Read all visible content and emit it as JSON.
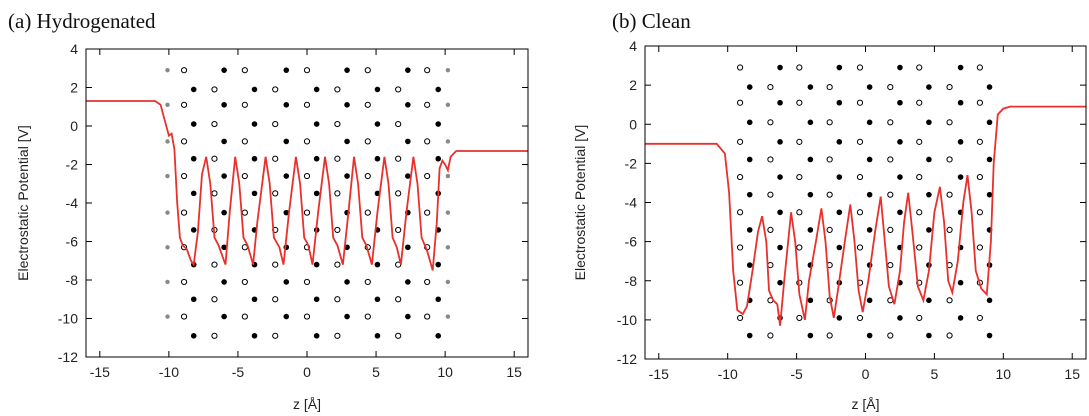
{
  "chart_data": [
    {
      "type": "line",
      "title": "(a) Hydrogenated",
      "xlabel": "z [Å]",
      "ylabel": "Electrostatic Potential [V]",
      "xlim": [
        -16,
        16
      ],
      "ylim": [
        -12,
        4
      ],
      "xticks": [
        -15,
        -10,
        -5,
        0,
        5,
        10,
        15
      ],
      "yticks": [
        -12,
        -10,
        -8,
        -6,
        -4,
        -2,
        0,
        2,
        4
      ],
      "color": "#e8302c",
      "x": [
        -16,
        -11,
        -10.6,
        -10.3,
        -10.0,
        -9.8,
        -9.6,
        -9.4,
        -9.2,
        -9.0,
        -8.7,
        -8.4,
        -8.2,
        -7.9,
        -7.6,
        -7.3,
        -7.0,
        -6.7,
        -6.4,
        -6.1,
        -5.9,
        -5.6,
        -5.2,
        -4.9,
        -4.6,
        -4.3,
        -3.9,
        -3.6,
        -3.0,
        -2.7,
        -2.4,
        -2.0,
        -1.7,
        -1.3,
        -0.8,
        -0.5,
        -0.2,
        0.1,
        0.4,
        0.8,
        1.3,
        1.6,
        1.9,
        2.2,
        2.6,
        3.0,
        3.4,
        3.7,
        4.0,
        4.3,
        4.7,
        5.1,
        5.6,
        5.9,
        6.2,
        6.5,
        6.8,
        7.2,
        7.7,
        8.0,
        8.3,
        8.7,
        9.1,
        9.4,
        9.6,
        9.8,
        10.0,
        10.2,
        10.4,
        10.8,
        16
      ],
      "values": [
        1.3,
        1.3,
        1.1,
        0.3,
        -0.5,
        -0.4,
        -1.2,
        -4,
        -5.8,
        -6.2,
        -6.4,
        -7.0,
        -7.2,
        -5.5,
        -2.5,
        -1.6,
        -3,
        -5.8,
        -6.2,
        -6.8,
        -7.2,
        -4.5,
        -1.6,
        -3,
        -5.8,
        -6.2,
        -7.2,
        -5,
        -1.6,
        -3,
        -5.8,
        -6.3,
        -7.2,
        -4.5,
        -1.6,
        -3,
        -5.8,
        -6.2,
        -7.2,
        -4.5,
        -1.6,
        -3,
        -5.8,
        -6.2,
        -7.2,
        -4.5,
        -1.6,
        -3,
        -5.8,
        -6.2,
        -7.2,
        -4.5,
        -1.6,
        -3,
        -5.8,
        -6.3,
        -7.2,
        -4.5,
        -1.6,
        -3,
        -5.8,
        -6.5,
        -7.5,
        -5,
        -2.2,
        -1.8,
        -2,
        -2.3,
        -1.6,
        -1.3,
        -1.3
      ],
      "lattice": {
        "rows_y": [
          2.9,
          1.9,
          1.1,
          0.1,
          -0.8,
          -1.7,
          -2.6,
          -3.5,
          -4.5,
          -5.4,
          -6.3,
          -7.2,
          -8.1,
          -9.0,
          -9.9,
          -10.9
        ],
        "row_patterns": [
          {
            "x": [
              -10.1,
              -8.9,
              -6.0,
              -4.5,
              -1.5,
              0,
              2.9,
              4.4,
              7.3,
              8.7,
              10.2
            ],
            "kind": [
              "gray",
              "open",
              "filled",
              "open",
              "filled",
              "open",
              "filled",
              "open",
              "filled",
              "open",
              "gray"
            ]
          },
          {
            "x": [
              -8.2,
              -6.7,
              -3.8,
              -2.3,
              0.7,
              2.2,
              5.1,
              6.6,
              9.5
            ],
            "kind": [
              "filled",
              "open",
              "filled",
              "open",
              "filled",
              "open",
              "filled",
              "open",
              "filled"
            ]
          }
        ]
      }
    },
    {
      "type": "line",
      "title": "(b) Clean",
      "xlabel": "z [Å]",
      "ylabel": "Electrostatic Potential [V]",
      "xlim": [
        -16,
        16
      ],
      "ylim": [
        -12,
        4
      ],
      "xticks": [
        -15,
        -10,
        -5,
        0,
        5,
        10,
        15
      ],
      "yticks": [
        -12,
        -10,
        -8,
        -6,
        -4,
        -2,
        0,
        2,
        4
      ],
      "color": "#e8302c",
      "x": [
        -16,
        -10.8,
        -10.2,
        -9.9,
        -9.6,
        -9.3,
        -8.9,
        -8.6,
        -8.2,
        -7.8,
        -7.5,
        -7.2,
        -7.0,
        -6.7,
        -6.4,
        -6.2,
        -5.9,
        -5.4,
        -5.1,
        -4.8,
        -4.4,
        -4.1,
        -3.6,
        -3.2,
        -2.9,
        -2.6,
        -2.3,
        -2.0,
        -1.5,
        -1.1,
        -0.8,
        -0.5,
        -0.2,
        0.2,
        0.7,
        1.1,
        1.4,
        1.7,
        2.1,
        2.5,
        2.8,
        3.1,
        3.4,
        3.8,
        4.2,
        4.6,
        5.0,
        5.4,
        5.7,
        6.0,
        6.3,
        6.7,
        7.1,
        7.4,
        7.7,
        8.0,
        8.4,
        8.8,
        9.1,
        9.3,
        9.6,
        10.0,
        10.5,
        16
      ],
      "values": [
        -1,
        -1,
        -1.5,
        -3.5,
        -7.5,
        -9.5,
        -9.7,
        -9.3,
        -7.5,
        -5.5,
        -4.7,
        -6,
        -8.5,
        -9,
        -9.2,
        -10.3,
        -8,
        -4.5,
        -6,
        -8.7,
        -10,
        -8,
        -6,
        -4.3,
        -6,
        -8.8,
        -9.9,
        -8.5,
        -6,
        -4.1,
        -6,
        -8.5,
        -9.6,
        -8,
        -5.5,
        -3.7,
        -6,
        -8.3,
        -9.2,
        -7.5,
        -5,
        -3.5,
        -5.5,
        -8.3,
        -9,
        -7.5,
        -4.5,
        -3.2,
        -5,
        -8,
        -8.6,
        -7,
        -4,
        -2.6,
        -4.5,
        -7.5,
        -8.4,
        -8.7,
        -6,
        -2,
        0.5,
        0.8,
        0.9,
        0.9
      ],
      "lattice": {
        "rows_y": [
          2.9,
          1.9,
          1.1,
          0.1,
          -0.9,
          -1.8,
          -2.7,
          -3.6,
          -4.5,
          -5.4,
          -6.3,
          -7.2,
          -8.1,
          -9.0,
          -9.9,
          -10.8
        ],
        "row_patterns": [
          {
            "x": [
              -9.1,
              -6.2,
              -4.8,
              -1.9,
              -0.4,
              2.5,
              3.9,
              6.9,
              8.3
            ],
            "kind": [
              "open",
              "filled",
              "open",
              "filled",
              "open",
              "filled",
              "open",
              "filled",
              "open"
            ]
          },
          {
            "x": [
              -8.4,
              -6.9,
              -4.0,
              -2.6,
              0.3,
              1.8,
              4.6,
              6.1,
              9.0
            ],
            "kind": [
              "filled",
              "open",
              "filled",
              "open",
              "filled",
              "open",
              "filled",
              "open",
              "filled"
            ]
          }
        ]
      }
    }
  ]
}
